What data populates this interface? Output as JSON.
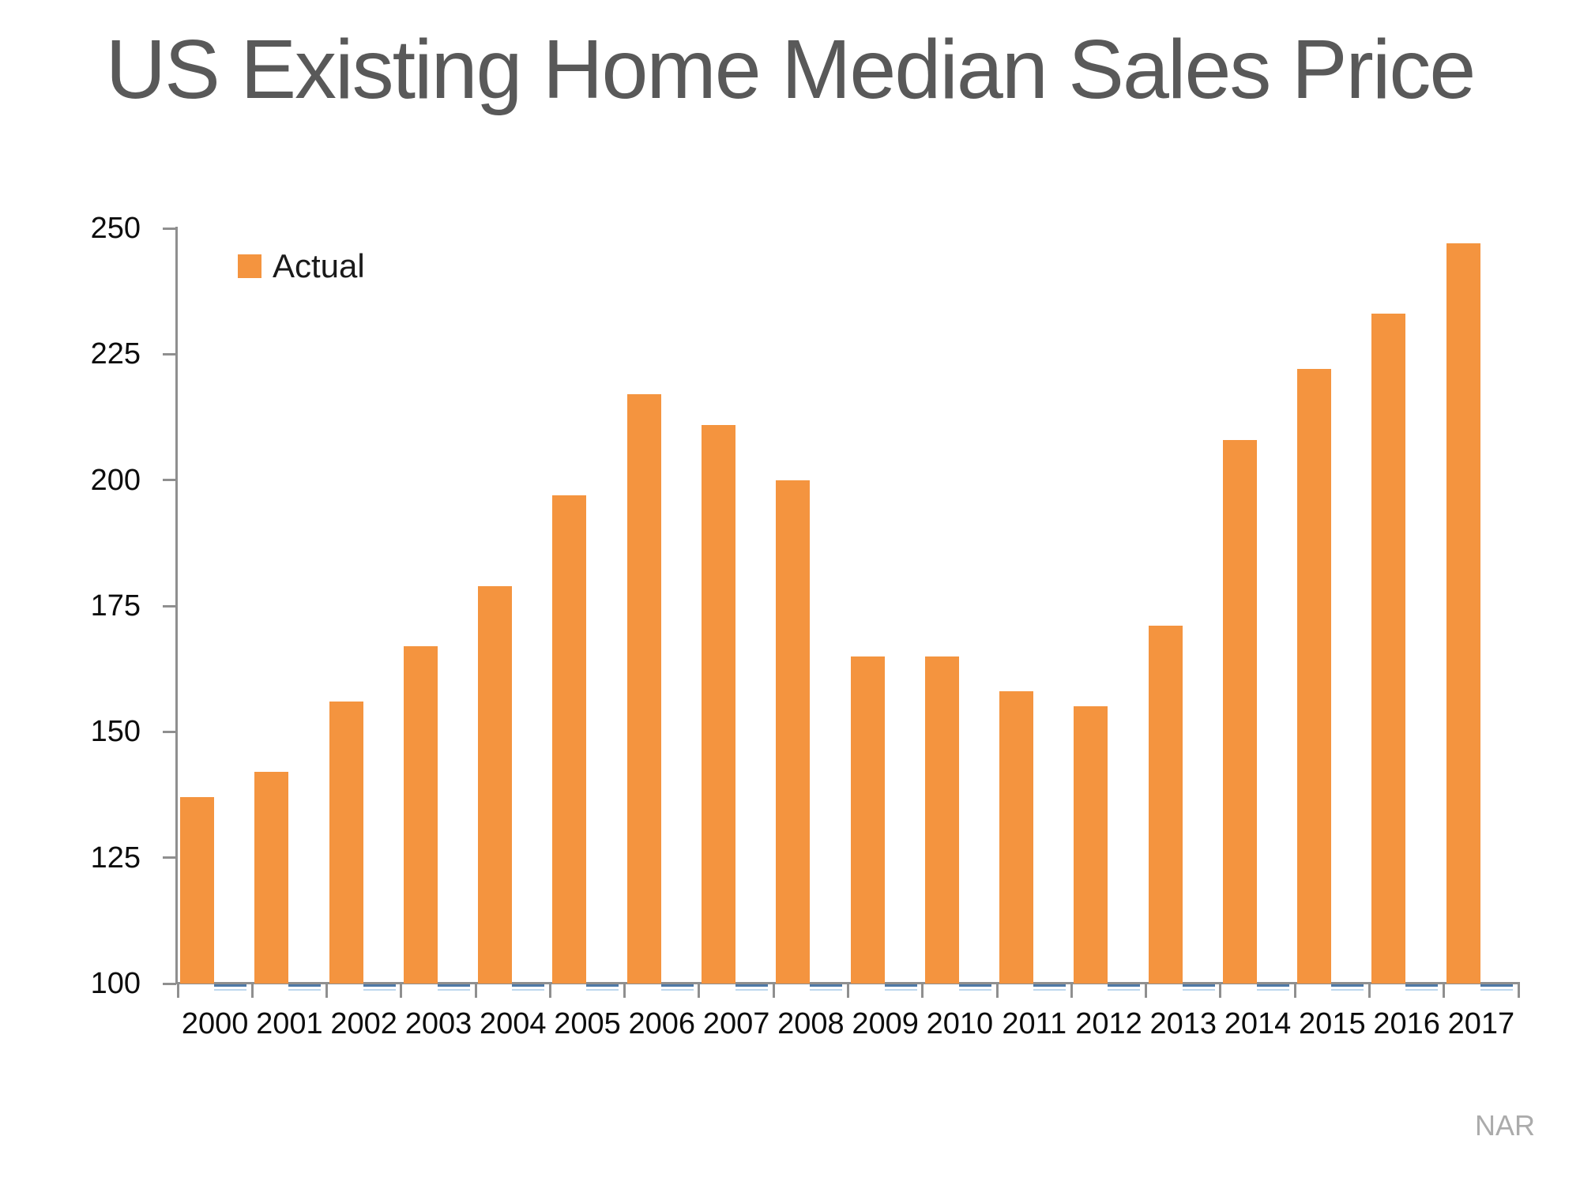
{
  "title": {
    "text": "US Existing Home Median Sales Price",
    "color": "#595959"
  },
  "legend": {
    "label": "Actual",
    "swatch_color": "#F4943F",
    "position": "top-left inside plot"
  },
  "source": {
    "text": "NAR",
    "color": "#ABABAB"
  },
  "axes": {
    "line_color": "#8F8F8F",
    "label_color": "#0D0D0D",
    "baseline_dash_color": "#4E79A7",
    "baseline_dash_light_color": "#BDD7EE"
  },
  "chart_data": {
    "type": "bar",
    "title": "US Existing Home Median Sales Price",
    "categories": [
      "2000",
      "2001",
      "2002",
      "2003",
      "2004",
      "2005",
      "2006",
      "2007",
      "2008",
      "2009",
      "2010",
      "2011",
      "2012",
      "2013",
      "2014",
      "2015",
      "2016",
      "2017"
    ],
    "series": [
      {
        "name": "Actual",
        "color": "#F4943F",
        "values": [
          137,
          142,
          156,
          167,
          179,
          197,
          217,
          211,
          200,
          165,
          165,
          158,
          155,
          171,
          208,
          222,
          233,
          247
        ]
      }
    ],
    "xlabel": "",
    "ylabel": "",
    "ylim": [
      100,
      250
    ],
    "yticks": [
      100,
      125,
      150,
      175,
      200,
      225,
      250
    ],
    "grid": false,
    "legend_position": "top-left",
    "source_label": "NAR"
  }
}
